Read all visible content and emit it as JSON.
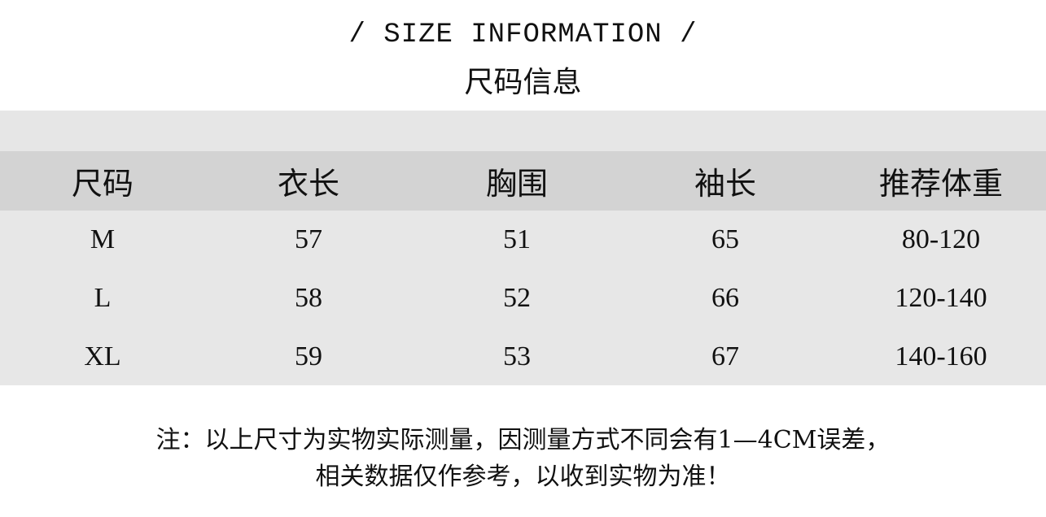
{
  "title_en": "/ SIZE INFORMATION /",
  "title_cn": "尺码信息",
  "table": {
    "headers": [
      "尺码",
      "衣长",
      "胸围",
      "袖长",
      "推荐体重"
    ],
    "rows": [
      [
        "M",
        "57",
        "51",
        "65",
        "80-120"
      ],
      [
        "L",
        "58",
        "52",
        "66",
        "120-140"
      ],
      [
        "XL",
        "59",
        "53",
        "67",
        "140-160"
      ]
    ]
  },
  "note": {
    "line1": "注：以上尺寸为实物实际测量，因测量方式不同会有1—4CM误差，",
    "line2": "相关数据仅作参考，以收到实物为准！"
  },
  "colors": {
    "header_bg": "#d3d3d3",
    "body_bg": "#e7e7e7",
    "band_bg": "#e6e6e6"
  }
}
